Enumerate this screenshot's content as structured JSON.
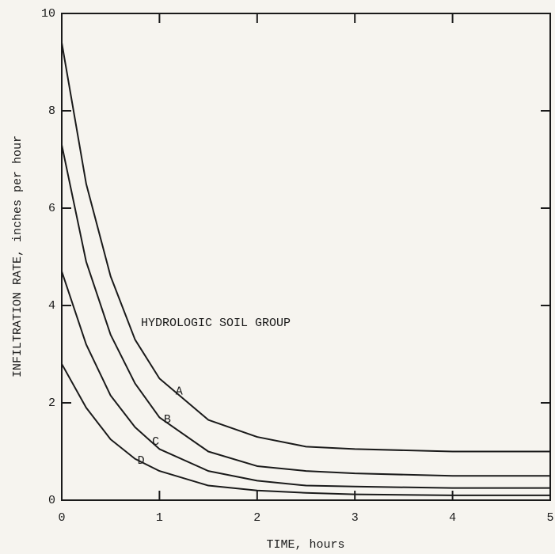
{
  "chart_data": {
    "type": "line",
    "xlabel": "TIME, hours",
    "ylabel": "INFILTRATION RATE, inches per hour",
    "annotation": "HYDROLOGIC SOIL GROUP",
    "x": [
      0,
      0.25,
      0.5,
      0.75,
      1,
      1.5,
      2,
      2.5,
      3,
      4,
      5
    ],
    "series": [
      {
        "name": "A",
        "color": "#1a1a1a",
        "values": [
          9.4,
          6.5,
          4.6,
          3.3,
          2.5,
          1.65,
          1.3,
          1.1,
          1.05,
          1.0,
          1.0
        ]
      },
      {
        "name": "B",
        "color": "#1a1a1a",
        "values": [
          7.3,
          4.9,
          3.4,
          2.4,
          1.7,
          1.0,
          0.7,
          0.6,
          0.55,
          0.5,
          0.5
        ]
      },
      {
        "name": "C",
        "color": "#1a1a1a",
        "values": [
          4.7,
          3.2,
          2.15,
          1.5,
          1.05,
          0.6,
          0.4,
          0.3,
          0.28,
          0.25,
          0.25
        ]
      },
      {
        "name": "D",
        "color": "#1a1a1a",
        "values": [
          2.8,
          1.9,
          1.25,
          0.85,
          0.6,
          0.3,
          0.2,
          0.15,
          0.12,
          0.1,
          0.1
        ]
      }
    ],
    "xlim": [
      0,
      5
    ],
    "xticks": [
      0,
      1,
      2,
      3,
      4,
      5
    ],
    "ylim": [
      0,
      10
    ],
    "yticks": [
      0,
      2,
      4,
      6,
      8,
      10
    ],
    "grid": false
  }
}
